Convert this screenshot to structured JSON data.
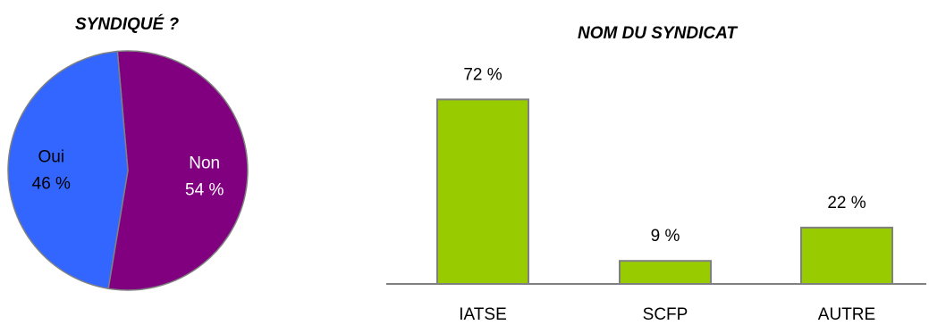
{
  "chart_data": [
    {
      "type": "pie",
      "title": "SYNDIQUÉ ?",
      "slices": [
        {
          "label": "Non",
          "value": 54,
          "value_label": "54 %",
          "color": "#800080",
          "text_color": "#ffffff"
        },
        {
          "label": "Oui",
          "value": 46,
          "value_label": "46 %",
          "color": "#3366ff",
          "text_color": "#000000"
        }
      ],
      "stroke_color": "#808080"
    },
    {
      "type": "bar",
      "title": "NOM DU SYNDICAT",
      "categories": [
        "IATSE",
        "SCFP",
        "AUTRE"
      ],
      "values": [
        72,
        9,
        22
      ],
      "value_labels": [
        "72 %",
        "9 %",
        "22 %"
      ],
      "ylim": [
        0,
        100
      ],
      "bar_color": "#99cc00",
      "bar_border_color": "#808080",
      "axis_color": "#808080",
      "grid": false,
      "legend": "none"
    }
  ]
}
